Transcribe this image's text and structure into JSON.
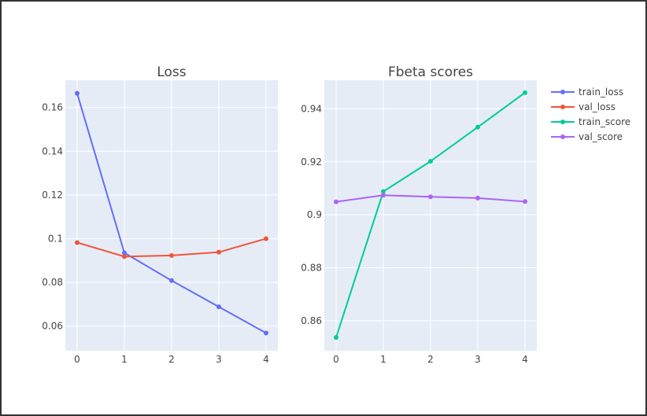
{
  "chart_data": [
    {
      "type": "line",
      "title": "Loss",
      "xlabel": "",
      "ylabel": "",
      "x": [
        0,
        1,
        2,
        3,
        4
      ],
      "xlim": [
        -0.25,
        4.25
      ],
      "ylim": [
        0.0487,
        0.1725
      ],
      "xticks": [
        0,
        1,
        2,
        3,
        4
      ],
      "xtick_labels": [
        "0",
        "1",
        "2",
        "3",
        "4"
      ],
      "yticks": [
        0.06,
        0.08,
        0.1,
        0.12,
        0.14,
        0.16
      ],
      "ytick_labels": [
        "0.06",
        "0.08",
        "0.1",
        "0.12",
        "0.14",
        "0.16"
      ],
      "grid": true,
      "series": [
        {
          "name": "train_loss",
          "color": "#636efa",
          "values": [
            0.1665,
            0.0935,
            0.0808,
            0.0688,
            0.0568
          ]
        },
        {
          "name": "val_loss",
          "color": "#ef553b",
          "values": [
            0.0982,
            0.0918,
            0.0923,
            0.0938,
            0.1
          ]
        }
      ]
    },
    {
      "type": "line",
      "title": "Fbeta scores",
      "xlabel": "",
      "ylabel": "",
      "x": [
        0,
        1,
        2,
        3,
        4
      ],
      "xlim": [
        -0.25,
        4.25
      ],
      "ylim": [
        0.8487,
        0.9508
      ],
      "xticks": [
        0,
        1,
        2,
        3,
        4
      ],
      "xtick_labels": [
        "0",
        "1",
        "2",
        "3",
        "4"
      ],
      "yticks": [
        0.86,
        0.88,
        0.9,
        0.92,
        0.94
      ],
      "ytick_labels": [
        "0.86",
        "0.88",
        "0.9",
        "0.92",
        "0.94"
      ],
      "grid": true,
      "series": [
        {
          "name": "train_score",
          "color": "#00cc96",
          "values": [
            0.8537,
            0.9088,
            0.9202,
            0.9331,
            0.9461
          ]
        },
        {
          "name": "val_score",
          "color": "#ab63fa",
          "values": [
            0.9049,
            0.9074,
            0.9068,
            0.9063,
            0.905
          ]
        }
      ]
    }
  ],
  "legend": {
    "placement": "right",
    "items": [
      {
        "name": "train_loss",
        "color": "#636efa"
      },
      {
        "name": "val_loss",
        "color": "#ef553b"
      },
      {
        "name": "train_score",
        "color": "#00cc96"
      },
      {
        "name": "val_score",
        "color": "#ab63fa"
      }
    ]
  },
  "colors": {
    "plot_background": "#e5ecf6",
    "grid": "#ffffff",
    "text": "#444444"
  }
}
